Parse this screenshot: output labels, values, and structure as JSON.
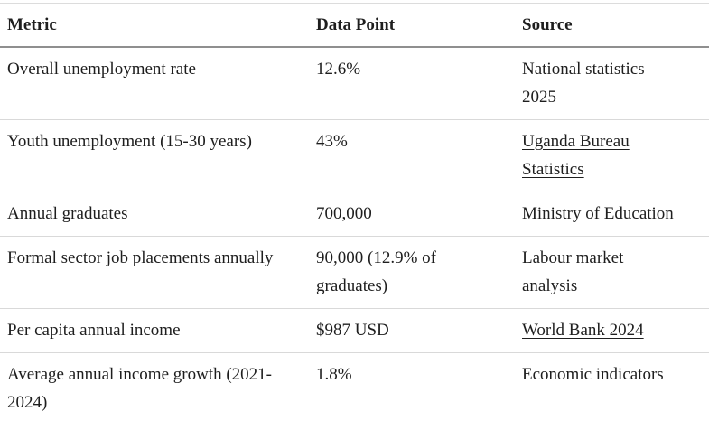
{
  "chart_data": {
    "type": "table",
    "columns": [
      "Metric",
      "Data Point",
      "Source"
    ],
    "rows": [
      {
        "metric": "Overall unemployment rate",
        "data_point": "12.6%",
        "source": "National statistics\n2025",
        "source_is_link": false
      },
      {
        "metric": "Youth unemployment (15-30 years)",
        "data_point": "43%",
        "source": "Uganda Bureau\nStatistics",
        "source_is_link": true
      },
      {
        "metric": "Annual graduates",
        "data_point": "700,000",
        "source": "Ministry of Education",
        "source_is_link": false
      },
      {
        "metric": "Formal sector job placements annually",
        "data_point": "90,000 (12.9% of\ngraduates)",
        "source": "Labour market\nanalysis",
        "source_is_link": false
      },
      {
        "metric": "Per capita annual income",
        "data_point": "$987 USD",
        "source": "World Bank 2024",
        "source_is_link": true
      },
      {
        "metric": "Average annual income growth (2021-\n2024)",
        "data_point": "1.8%",
        "source": "Economic indicators",
        "source_is_link": false
      }
    ],
    "layout": {
      "grid": "horizontal row dividers only",
      "header_rule_color": "#8f8f8f",
      "row_divider_color": "#d9d9d9",
      "text_color": "#1e1e1e",
      "background_color": "#ffffff",
      "link_style": "underlined, same color as text"
    }
  }
}
